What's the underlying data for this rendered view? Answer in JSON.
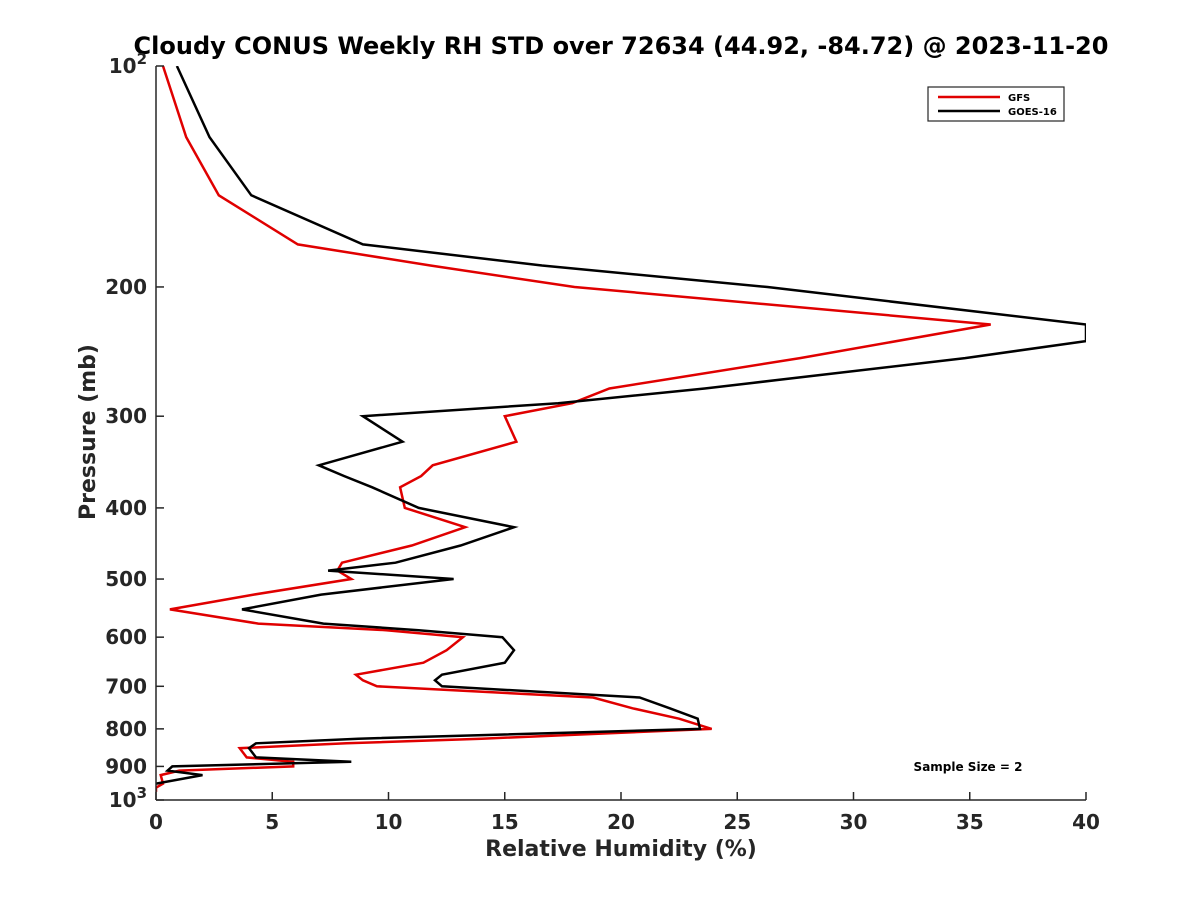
{
  "chart_data": {
    "type": "line",
    "title": "Cloudy CONUS Weekly RH STD over 72634 (44.92, -84.72) @ 2023-11-20",
    "xlabel": "Relative Humidity (%)",
    "ylabel": "Pressure (mb)",
    "xlim": [
      0,
      40
    ],
    "ylim": [
      100,
      1000
    ],
    "y_scale": "log",
    "y_reversed": false,
    "grid": false,
    "legend_position": "top-right",
    "x_ticks": [
      0,
      5,
      10,
      15,
      20,
      25,
      30,
      35,
      40
    ],
    "x_tick_labels": [
      "0",
      "5",
      "10",
      "15",
      "20",
      "25",
      "30",
      "35",
      "40"
    ],
    "y_ticks": [
      100,
      200,
      300,
      400,
      500,
      600,
      700,
      800,
      900,
      1000
    ],
    "y_tick_labels": [
      {
        "base": "10",
        "sup": "2"
      },
      {
        "base": "200"
      },
      {
        "base": "300"
      },
      {
        "base": "400"
      },
      {
        "base": "500"
      },
      {
        "base": "600"
      },
      {
        "base": "700"
      },
      {
        "base": "800"
      },
      {
        "base": "900"
      },
      {
        "base": "10",
        "sup": "3"
      }
    ],
    "annotation": "Sample Size = 2",
    "series": [
      {
        "name": "GFS",
        "color": "#e00000",
        "points": [
          [
            0.3,
            100
          ],
          [
            1.3,
            125
          ],
          [
            2.7,
            150
          ],
          [
            6.1,
            175
          ],
          [
            11.8,
            187
          ],
          [
            18.0,
            200
          ],
          [
            35.9,
            225
          ],
          [
            27.7,
            250
          ],
          [
            19.5,
            275
          ],
          [
            17.9,
            288
          ],
          [
            15.0,
            300
          ],
          [
            15.5,
            325
          ],
          [
            11.9,
            350
          ],
          [
            11.4,
            362
          ],
          [
            10.5,
            375
          ],
          [
            10.7,
            400
          ],
          [
            13.3,
            425
          ],
          [
            11.0,
            450
          ],
          [
            8.0,
            475
          ],
          [
            7.8,
            487
          ],
          [
            8.4,
            500
          ],
          [
            4.2,
            525
          ],
          [
            0.6,
            550
          ],
          [
            4.4,
            575
          ],
          [
            9.9,
            587
          ],
          [
            13.2,
            600
          ],
          [
            12.5,
            625
          ],
          [
            11.5,
            650
          ],
          [
            8.6,
            675
          ],
          [
            8.9,
            687
          ],
          [
            9.5,
            700
          ],
          [
            18.8,
            725
          ],
          [
            20.5,
            750
          ],
          [
            22.5,
            775
          ],
          [
            23.9,
            800
          ],
          [
            14.0,
            825
          ],
          [
            8.2,
            837
          ],
          [
            3.6,
            850
          ],
          [
            3.9,
            875
          ],
          [
            5.9,
            887
          ],
          [
            5.9,
            900
          ],
          [
            1.0,
            912
          ],
          [
            0.2,
            925
          ],
          [
            0.3,
            950
          ],
          [
            0.0,
            962
          ],
          [
            0.0,
            975
          ]
        ]
      },
      {
        "name": "GOES-16",
        "color": "#000000",
        "points": [
          [
            0.9,
            100
          ],
          [
            2.3,
            125
          ],
          [
            4.1,
            150
          ],
          [
            8.9,
            175
          ],
          [
            16.6,
            187
          ],
          [
            26.3,
            200
          ],
          [
            40.0,
            225
          ],
          [
            40.0,
            237
          ],
          [
            34.8,
            250
          ],
          [
            23.6,
            275
          ],
          [
            17.3,
            288
          ],
          [
            8.9,
            300
          ],
          [
            10.6,
            325
          ],
          [
            7.0,
            350
          ],
          [
            8.1,
            362
          ],
          [
            9.3,
            375
          ],
          [
            11.3,
            400
          ],
          [
            15.4,
            425
          ],
          [
            13.1,
            450
          ],
          [
            10.3,
            475
          ],
          [
            7.4,
            487
          ],
          [
            12.8,
            500
          ],
          [
            7.1,
            525
          ],
          [
            3.7,
            550
          ],
          [
            7.2,
            575
          ],
          [
            11.3,
            587
          ],
          [
            14.9,
            600
          ],
          [
            15.4,
            625
          ],
          [
            15.0,
            650
          ],
          [
            12.3,
            675
          ],
          [
            12.0,
            687
          ],
          [
            12.3,
            700
          ],
          [
            20.8,
            725
          ],
          [
            22.1,
            750
          ],
          [
            23.3,
            775
          ],
          [
            23.4,
            800
          ],
          [
            8.7,
            825
          ],
          [
            4.3,
            837
          ],
          [
            4.0,
            850
          ],
          [
            4.3,
            875
          ],
          [
            8.4,
            887
          ],
          [
            0.7,
            900
          ],
          [
            0.5,
            912
          ],
          [
            2.0,
            925
          ],
          [
            0.0,
            950
          ]
        ]
      }
    ]
  }
}
